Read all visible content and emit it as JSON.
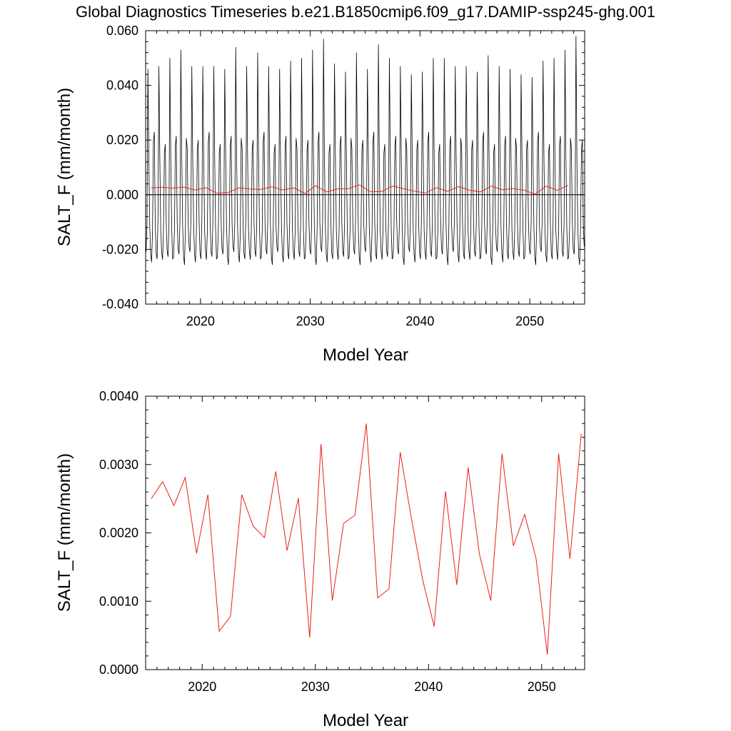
{
  "title": "Global Diagnostics Timeseries b.e21.B1850cmip6.f09_g17.DAMIP-ssp245-ghg.001",
  "chart_data": [
    {
      "type": "line",
      "xlabel": "Model Year",
      "ylabel": "SALT_F (mm/month)",
      "xlim": [
        2015.0,
        2055.0
      ],
      "ylim": [
        -0.04,
        0.06
      ],
      "x_ticks": [
        {
          "value": 2020,
          "label": "2020"
        },
        {
          "value": 2030,
          "label": "2030"
        },
        {
          "value": 2040,
          "label": "2040"
        },
        {
          "value": 2050,
          "label": "2050"
        }
      ],
      "y_ticks": [
        {
          "value": -0.04,
          "label": "-0.040"
        },
        {
          "value": -0.02,
          "label": "-0.020"
        },
        {
          "value": 0.0,
          "label": "0.000"
        },
        {
          "value": 0.02,
          "label": "0.020"
        },
        {
          "value": 0.04,
          "label": "0.040"
        },
        {
          "value": 0.06,
          "label": "0.060"
        }
      ],
      "reference_line": 0.0,
      "monthly_series": {
        "color": "#000000",
        "start_year": 2015.0,
        "monthly_pattern": [
          -0.022,
          -0.01,
          0.046,
          0.014,
          -0.012,
          -0.022,
          -0.024,
          -0.013,
          0.018,
          0.02,
          -0.01,
          -0.02
        ],
        "annual_peaks": [
          0.046,
          0.047,
          0.05,
          0.053,
          0.047,
          0.047,
          0.047,
          0.046,
          0.054,
          0.047,
          0.052,
          0.047,
          0.046,
          0.049,
          0.05,
          0.053,
          0.057,
          0.048,
          0.045,
          0.052,
          0.046,
          0.055,
          0.05,
          0.047,
          0.044,
          0.045,
          0.05,
          0.05,
          0.047,
          0.047,
          0.045,
          0.051,
          0.047,
          0.046,
          0.044,
          0.043,
          0.049,
          0.05,
          0.053,
          0.058
        ]
      },
      "annual_series": {
        "color": "#e8201a",
        "x": [
          2015.5,
          2016.5,
          2017.5,
          2018.5,
          2019.5,
          2020.5,
          2021.5,
          2022.5,
          2023.5,
          2024.5,
          2025.5,
          2026.5,
          2027.5,
          2028.5,
          2029.5,
          2030.5,
          2031.5,
          2032.5,
          2033.5,
          2034.5,
          2035.5,
          2036.5,
          2037.5,
          2038.5,
          2039.5,
          2040.5,
          2041.5,
          2042.5,
          2043.5,
          2044.5,
          2045.5,
          2046.5,
          2047.5,
          2048.5,
          2049.5,
          2050.5,
          2051.5,
          2052.5,
          2053.5
        ],
        "y": [
          0.0025,
          0.00275,
          0.0024,
          0.00281,
          0.0017,
          0.00256,
          0.00056,
          0.00078,
          0.00256,
          0.0021,
          0.00193,
          0.0029,
          0.00174,
          0.00251,
          0.00047,
          0.0033,
          0.00101,
          0.00214,
          0.00226,
          0.0036,
          0.00105,
          0.00118,
          0.00318,
          0.0022,
          0.0013,
          0.00063,
          0.00261,
          0.00124,
          0.00296,
          0.00169,
          0.00101,
          0.00316,
          0.00181,
          0.00227,
          0.00163,
          0.00022,
          0.00316,
          0.00162,
          0.00345
        ]
      }
    },
    {
      "type": "line",
      "xlabel": "Model Year",
      "ylabel": "SALT_F (mm/month)",
      "xlim": [
        2015.0,
        2053.8
      ],
      "ylim": [
        0.0,
        0.004
      ],
      "x_ticks": [
        {
          "value": 2020,
          "label": "2020"
        },
        {
          "value": 2030,
          "label": "2030"
        },
        {
          "value": 2040,
          "label": "2040"
        },
        {
          "value": 2050,
          "label": "2050"
        }
      ],
      "y_ticks": [
        {
          "value": 0.0,
          "label": "0.0000"
        },
        {
          "value": 0.001,
          "label": "0.0010"
        },
        {
          "value": 0.002,
          "label": "0.0020"
        },
        {
          "value": 0.003,
          "label": "0.0030"
        },
        {
          "value": 0.004,
          "label": "0.0040"
        }
      ],
      "series": [
        {
          "color": "#e8201a",
          "x": [
            2015.5,
            2016.5,
            2017.5,
            2018.5,
            2019.5,
            2020.5,
            2021.5,
            2022.5,
            2023.5,
            2024.5,
            2025.5,
            2026.5,
            2027.5,
            2028.5,
            2029.5,
            2030.5,
            2031.5,
            2032.5,
            2033.5,
            2034.5,
            2035.5,
            2036.5,
            2037.5,
            2038.5,
            2039.5,
            2040.5,
            2041.5,
            2042.5,
            2043.5,
            2044.5,
            2045.5,
            2046.5,
            2047.5,
            2048.5,
            2049.5,
            2050.5,
            2051.5,
            2052.5,
            2053.5
          ],
          "values": [
            0.0025,
            0.00275,
            0.0024,
            0.00281,
            0.0017,
            0.00256,
            0.00056,
            0.00078,
            0.00256,
            0.0021,
            0.00193,
            0.0029,
            0.00174,
            0.00251,
            0.00047,
            0.0033,
            0.00101,
            0.00214,
            0.00226,
            0.0036,
            0.00105,
            0.00118,
            0.00318,
            0.0022,
            0.0013,
            0.00063,
            0.00261,
            0.00124,
            0.00296,
            0.00169,
            0.00101,
            0.00316,
            0.00181,
            0.00227,
            0.00163,
            0.00022,
            0.00316,
            0.00162,
            0.00345
          ]
        }
      ]
    }
  ]
}
